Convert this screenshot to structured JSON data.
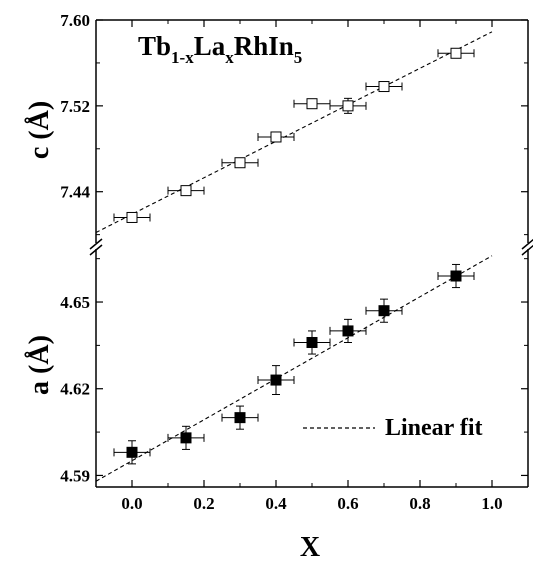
{
  "chart_data": {
    "type": "scatter",
    "title": "Tb1-xLaxRhIn5",
    "title_parts": {
      "base1": "Tb",
      "sub1": "1-x",
      "base2": "La",
      "sub2": "x",
      "base3": "RhIn",
      "sub3": "5"
    },
    "xlabel": "X",
    "xlim": [
      -0.1,
      1.1
    ],
    "x_ticks": [
      "0.0",
      "0.2",
      "0.4",
      "0.6",
      "0.8",
      "1.0"
    ],
    "x_tick_values": [
      0.0,
      0.2,
      0.4,
      0.6,
      0.8,
      1.0
    ],
    "panels": [
      {
        "id": "c",
        "ylabel": "c (Å)",
        "ylabel_parts": {
          "letter": "c",
          "unit": "(Å)"
        },
        "ylim": [
          7.395,
          7.6
        ],
        "y_ticks": [
          "7.44",
          "7.52",
          "7.60"
        ],
        "y_tick_values": [
          7.44,
          7.52,
          7.6
        ],
        "marker": "open-square",
        "series": [
          {
            "x": [
              0.0,
              0.15,
              0.3,
              0.4,
              0.5,
              0.6,
              0.7,
              0.9
            ],
            "y": [
              7.416,
              7.441,
              7.467,
              7.491,
              7.522,
              7.52,
              7.538,
              7.569
            ],
            "xerr": [
              0.05,
              0.05,
              0.05,
              0.05,
              0.05,
              0.05,
              0.05,
              0.05
            ],
            "yerr": [
              0.004,
              0.004,
              0.004,
              0.004,
              0.004,
              0.007,
              0.004,
              0.004
            ]
          }
        ],
        "fit": {
          "x": [
            -0.1,
            1.0
          ],
          "y": [
            7.402,
            7.589
          ]
        }
      },
      {
        "id": "a",
        "ylabel": "a (Å)",
        "ylabel_parts": {
          "letter": "a",
          "unit": "(Å)"
        },
        "ylim": [
          4.586,
          4.668
        ],
        "y_ticks": [
          "4.59",
          "4.62",
          "4.65"
        ],
        "y_tick_values": [
          4.59,
          4.62,
          4.65
        ],
        "marker": "filled-square",
        "series": [
          {
            "x": [
              0.0,
              0.15,
              0.3,
              0.4,
              0.5,
              0.6,
              0.7,
              0.9
            ],
            "y": [
              4.598,
              4.603,
              4.61,
              4.623,
              4.636,
              4.64,
              4.647,
              4.659
            ],
            "xerr": [
              0.05,
              0.05,
              0.05,
              0.05,
              0.05,
              0.05,
              0.05,
              0.05
            ],
            "yerr": [
              0.004,
              0.004,
              0.004,
              0.005,
              0.004,
              0.004,
              0.004,
              0.004
            ]
          }
        ],
        "fit": {
          "x": [
            -0.1,
            1.0
          ],
          "y": [
            4.588,
            4.666
          ]
        }
      }
    ],
    "legend": {
      "label": "Linear fit",
      "style": "dashed",
      "placement": "lower-right of bottom panel"
    },
    "grid": false,
    "axis_break": true
  }
}
